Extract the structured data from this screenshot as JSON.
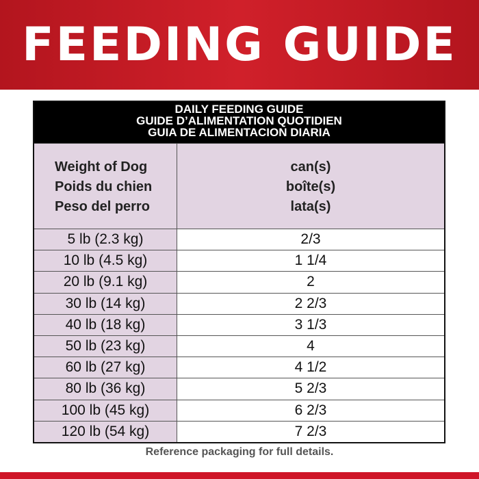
{
  "banner": {
    "title": "FEEDING GUIDE"
  },
  "table": {
    "title_lines": [
      "DAILY FEEDING GUIDE",
      "GUIDE D’ALIMENTATION QUOTIDIEN",
      "GUIA DE ALIMENTACION DIARIA"
    ],
    "col1_header": [
      "Weight of Dog",
      "Poids du chien",
      "Peso del perro"
    ],
    "col2_header": [
      "can(s)",
      "boîte(s)",
      "lata(s)"
    ],
    "rows": [
      {
        "weight": "5 lb (2.3 kg)",
        "amount": "2/3"
      },
      {
        "weight": "10 lb (4.5 kg)",
        "amount": "1 1/4"
      },
      {
        "weight": "20 lb (9.1 kg)",
        "amount": "2"
      },
      {
        "weight": "30 lb (14 kg)",
        "amount": "2 2/3"
      },
      {
        "weight": "40 lb (18 kg)",
        "amount": "3 1/3"
      },
      {
        "weight": "50 lb (23 kg)",
        "amount": "4"
      },
      {
        "weight": "60 lb (27 kg)",
        "amount": "4 1/2"
      },
      {
        "weight": "80 lb (36 kg)",
        "amount": "5 2/3"
      },
      {
        "weight": "100 lb (45 kg)",
        "amount": "6 2/3"
      },
      {
        "weight": "120 lb (54 kg)",
        "amount": "7 2/3"
      }
    ]
  },
  "footer": {
    "note": "Reference packaging for full details."
  },
  "colors": {
    "brand_red": "#cf1528",
    "header_purple": "#e2d4e2"
  }
}
